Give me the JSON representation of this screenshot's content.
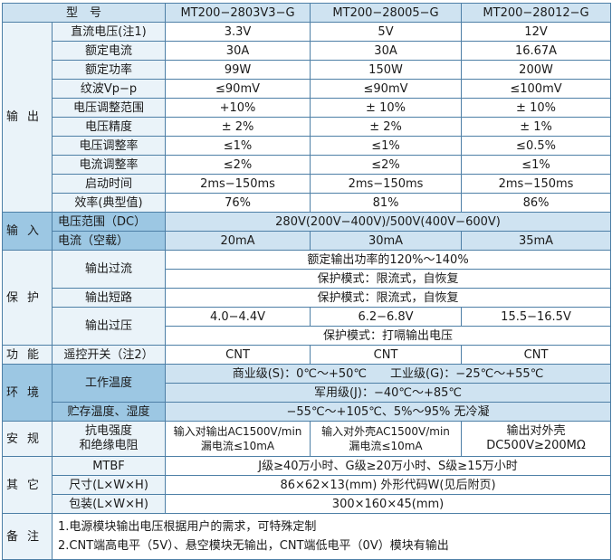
{
  "header": {
    "col0": "型　号",
    "m1": "MT200−2803V3−G",
    "m2": "MT200−28005−G",
    "m3": "MT200−28012−G"
  },
  "output": {
    "group": "输出",
    "rows": [
      {
        "label": "直流电压(注1)",
        "v1": "3.3V",
        "v2": "5V",
        "v3": "12V"
      },
      {
        "label": "额定电流",
        "v1": "30A",
        "v2": "30A",
        "v3": "16.67A"
      },
      {
        "label": "额定功率",
        "v1": "99W",
        "v2": "150W",
        "v3": "200W"
      },
      {
        "label": "纹波Vp−p",
        "v1": "≤90mV",
        "v2": "≤90mV",
        "v3": "≤100mV"
      },
      {
        "label": "电压调整范围",
        "v1": "+10%",
        "v2": "± 10%",
        "v3": "± 10%"
      },
      {
        "label": "电压精度",
        "v1": "± 2%",
        "v2": "± 2%",
        "v3": "± 1%"
      },
      {
        "label": "电压调整率",
        "v1": "≤1%",
        "v2": "≤1%",
        "v3": "≤0.5%"
      },
      {
        "label": "电流调整率",
        "v1": "≤2%",
        "v2": "≤2%",
        "v3": "≤1%"
      },
      {
        "label": "启动时间",
        "v1": "2ms−150ms",
        "v2": "2ms−150ms",
        "v3": "2ms−150ms"
      },
      {
        "label": "效率(典型值)",
        "v1": "76%",
        "v2": "81%",
        "v3": "86%"
      }
    ]
  },
  "input": {
    "group": "输入",
    "voltage_label": "电压范围（DC）",
    "voltage_value": "280V(200V−400V)/500V(400V−600V)",
    "current_label": "电流（空载）",
    "c1": "20mA",
    "c2": "30mA",
    "c3": "35mA"
  },
  "protection": {
    "group": "保护",
    "oc_label": "输出过流",
    "oc_line1": "额定输出功率的120%～140%",
    "oc_line2": "保护模式：限流式，自恢复",
    "sc_label": "输出短路",
    "sc_value": "保护模式：限流式，自恢复",
    "ov_label": "输出过压",
    "ov1": "4.0−4.4V",
    "ov2": "6.2−6.8V",
    "ov3": "15.5−16.5V",
    "ov_mode": "保护模式：打嗝输出电压"
  },
  "function": {
    "group": "功能",
    "label": "遥控开关（注2）",
    "v1": "CNT",
    "v2": "CNT",
    "v3": "CNT"
  },
  "environment": {
    "group": "环境",
    "op_label": "工作温度",
    "op_line1": "商业级(S)：0℃～+50℃　　工业级(G)：−25℃～+55℃",
    "op_line2": "军用级(J)：−40℃～+85℃",
    "st_label": "贮存温度、湿度",
    "st_value": "−55℃～+105℃、5%～95% 无冷凝"
  },
  "safety": {
    "group": "安规",
    "label": "抗电强度\n和绝缘电阻",
    "v1": "输入对输出AC1500V/min\n漏电流≤10mA",
    "v2": "输入对外壳AC1500V/min\n漏电流≤10mA",
    "v3": "输出对外壳\nDC500V≥200MΩ"
  },
  "other": {
    "group": "其它",
    "mtbf_label": "MTBF",
    "mtbf_value": "J级≥40万小时、G级≥20万小时、S级≥15万小时",
    "size_label": "尺寸(L×W×H)",
    "size_value": "86×62×13(mm) 外形代码W(见后附页)",
    "pack_label": "包装(L×W×H)",
    "pack_value": "300×160×45(mm)"
  },
  "notes": {
    "group": "备注",
    "line1": "1.电源模块输出电压根据用户的需求，可特殊定制",
    "line2": "2.CNT端高电平（5V）、悬空模块无输出，CNT端低电平（0V）模块有输出"
  }
}
